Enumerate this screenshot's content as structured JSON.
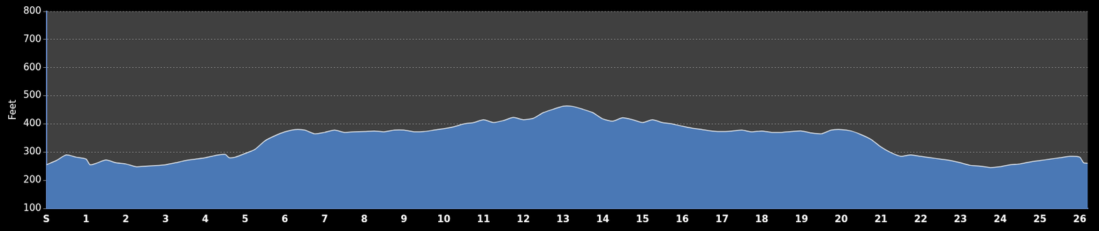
{
  "chart_data": {
    "type": "area",
    "y_label": "Feet",
    "x": [
      0,
      0.25,
      0.5,
      0.75,
      1.0,
      1.1,
      1.25,
      1.5,
      1.75,
      2.0,
      2.25,
      2.5,
      2.75,
      3.0,
      3.25,
      3.5,
      3.75,
      4.0,
      4.25,
      4.5,
      4.6,
      4.75,
      5.0,
      5.25,
      5.5,
      5.75,
      6.0,
      6.25,
      6.5,
      6.75,
      7.0,
      7.25,
      7.5,
      7.75,
      8.0,
      8.25,
      8.5,
      8.75,
      9.0,
      9.25,
      9.5,
      9.75,
      10.0,
      10.25,
      10.5,
      10.75,
      11.0,
      11.25,
      11.5,
      11.75,
      12.0,
      12.25,
      12.5,
      12.75,
      13.0,
      13.25,
      13.5,
      13.75,
      14.0,
      14.25,
      14.5,
      14.75,
      15.0,
      15.25,
      15.5,
      15.75,
      16.0,
      16.25,
      16.5,
      16.75,
      17.0,
      17.25,
      17.5,
      17.75,
      18.0,
      18.25,
      18.5,
      18.75,
      19.0,
      19.25,
      19.5,
      19.75,
      20.0,
      20.25,
      20.5,
      20.75,
      21.0,
      21.25,
      21.5,
      21.75,
      22.0,
      22.25,
      22.5,
      22.75,
      23.0,
      23.25,
      23.5,
      23.75,
      24.0,
      24.25,
      24.5,
      24.75,
      25.0,
      25.25,
      25.5,
      25.75,
      26.0,
      26.1,
      26.2
    ],
    "values": [
      255,
      270,
      290,
      282,
      275,
      255,
      260,
      272,
      262,
      258,
      248,
      250,
      252,
      255,
      262,
      270,
      275,
      280,
      288,
      292,
      280,
      282,
      295,
      310,
      340,
      358,
      372,
      380,
      378,
      365,
      370,
      378,
      370,
      372,
      373,
      375,
      372,
      378,
      378,
      372,
      373,
      378,
      383,
      390,
      400,
      405,
      415,
      405,
      412,
      423,
      415,
      420,
      440,
      452,
      463,
      462,
      452,
      440,
      418,
      410,
      422,
      415,
      405,
      415,
      405,
      400,
      392,
      385,
      380,
      375,
      373,
      375,
      378,
      372,
      375,
      370,
      370,
      373,
      375,
      368,
      365,
      378,
      380,
      375,
      362,
      345,
      318,
      298,
      285,
      290,
      285,
      280,
      275,
      270,
      262,
      253,
      250,
      245,
      248,
      255,
      258,
      265,
      270,
      275,
      280,
      285,
      282,
      262,
      260
    ],
    "color": "#4a78b5",
    "xlim": [
      0,
      26.2
    ],
    "xticks": [
      {
        "value": 0,
        "label": "S"
      },
      1,
      2,
      3,
      4,
      5,
      6,
      7,
      8,
      9,
      10,
      11,
      12,
      13,
      14,
      15,
      16,
      17,
      18,
      19,
      20,
      21,
      22,
      23,
      24,
      25,
      26
    ],
    "ylim": [
      100,
      800
    ],
    "yticks": [
      100,
      200,
      300,
      400,
      500,
      600,
      700,
      800
    ],
    "grid": true
  }
}
